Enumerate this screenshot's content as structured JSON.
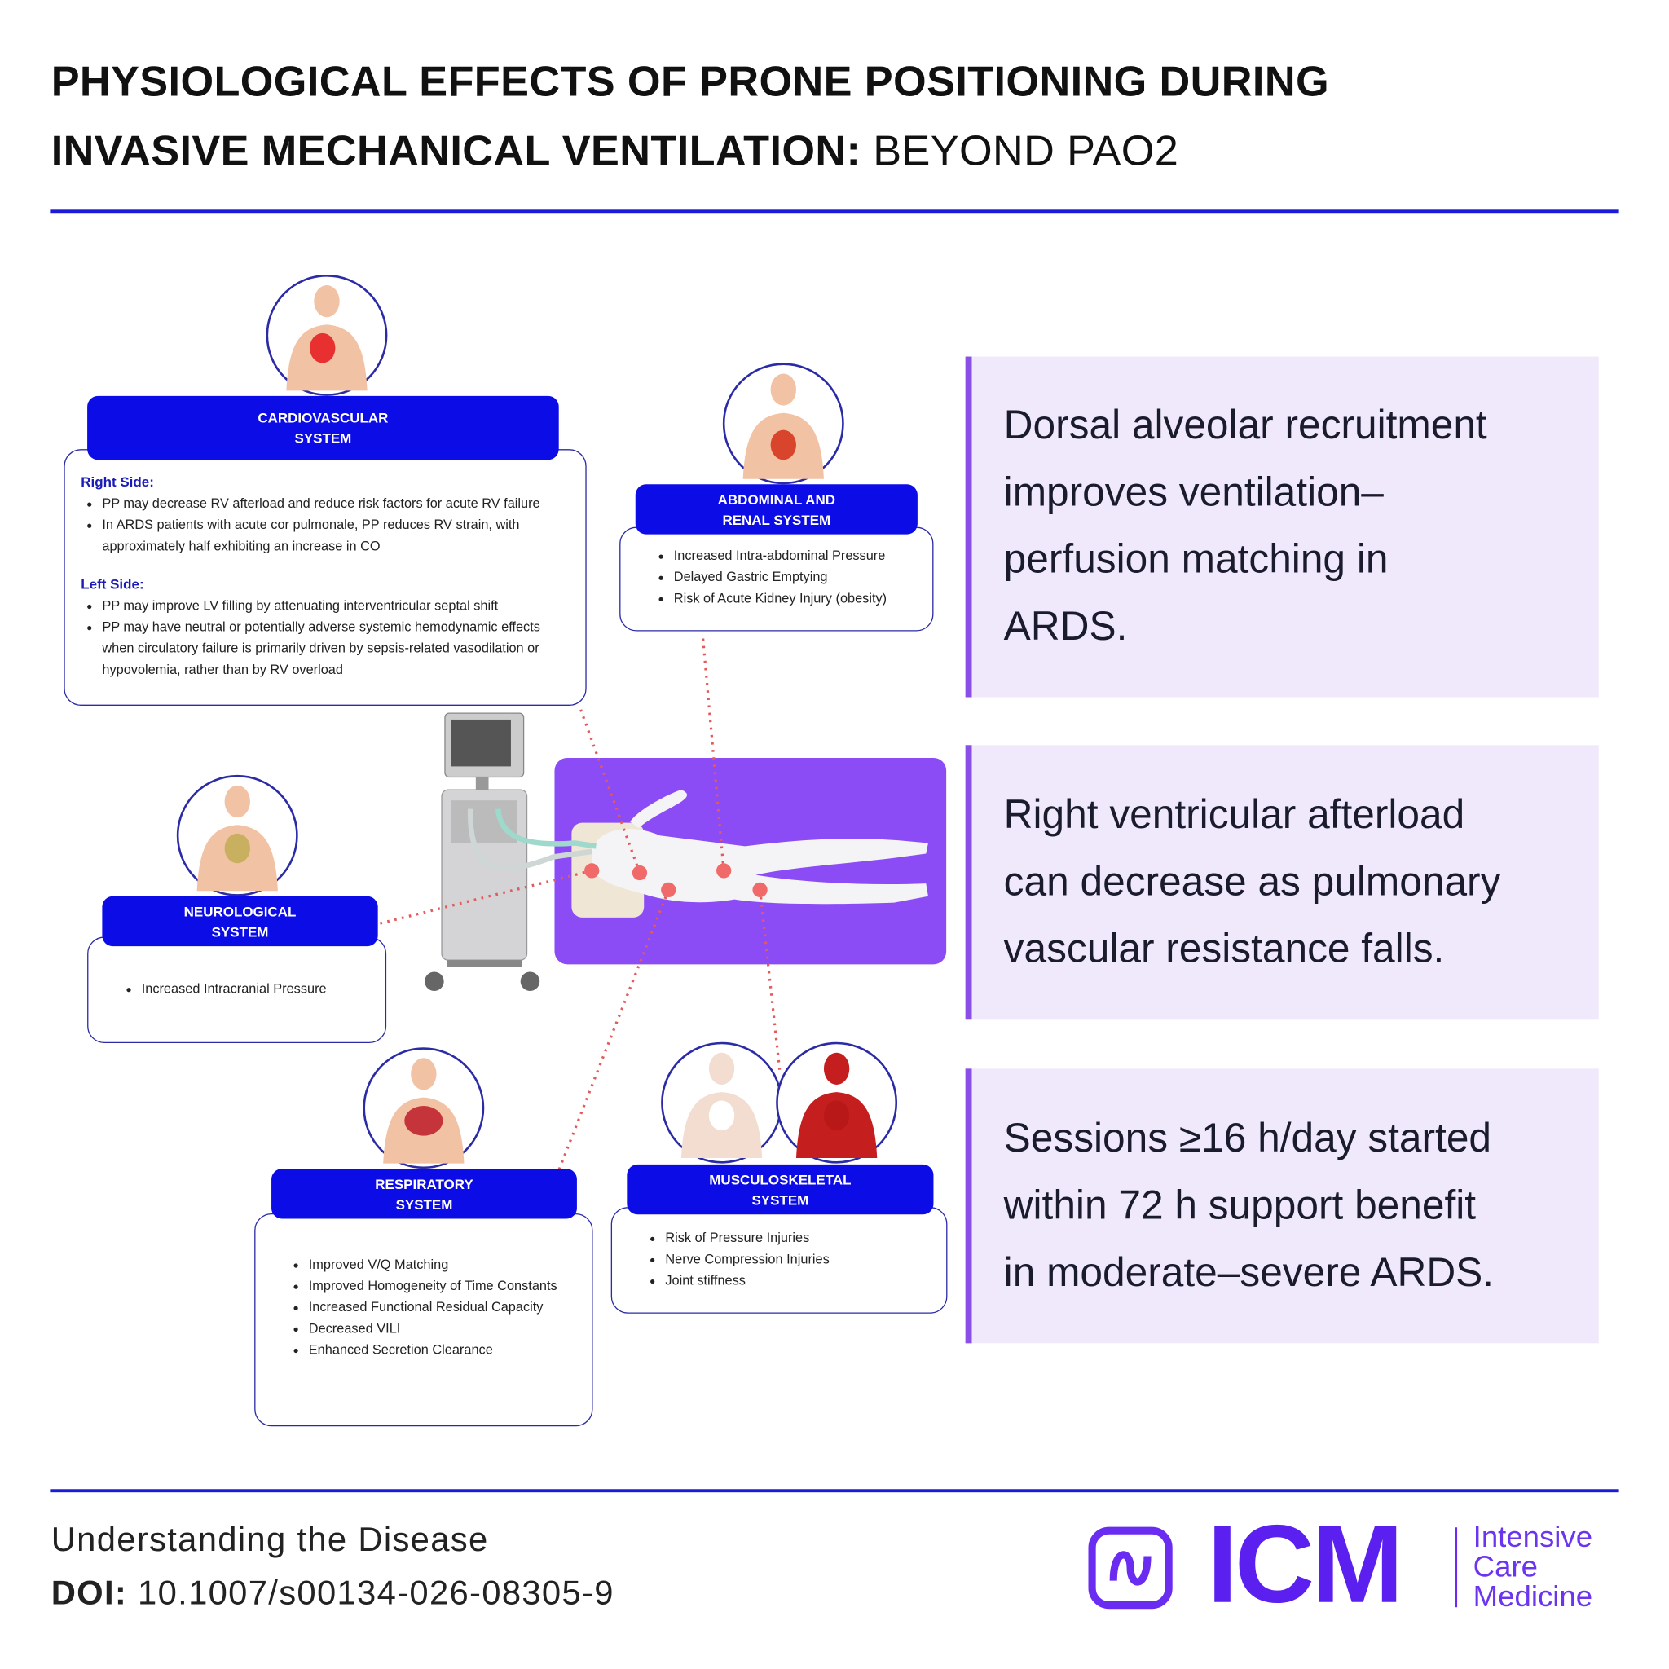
{
  "header": {
    "title_line1": "PHYSIOLOGICAL EFFECTS OF PRONE POSITIONING DURING",
    "title_line2_bold": "INVASIVE MECHANICAL VENTILATION:",
    "title_line2_rest": "BEYOND PAO2"
  },
  "systems": [
    {
      "title": [
        "CARDIOVASCULAR",
        "SYSTEM"
      ],
      "sections": [
        {
          "heading": "Right Side:",
          "bullets": [
            "PP may decrease RV afterload and reduce risk factors for acute RV failure",
            "In ARDS patients with acute cor pulmonale, PP reduces RV strain, with approximately half exhibiting an increase in CO"
          ]
        },
        {
          "heading": "Left Side:",
          "bullets": [
            "PP may improve LV filling by attenuating interventricular septal shift",
            "PP may have neutral or potentially adverse systemic hemodynamic effects when circulatory failure is primarily driven by sepsis-related vasodilation or hypovolemia, rather than by RV overload"
          ]
        }
      ]
    },
    {
      "title": [
        "ABDOMINAL AND",
        "RENAL SYSTEM"
      ],
      "sections": [
        {
          "bullets": [
            "Increased Intra-abdominal Pressure",
            "Delayed Gastric Emptying",
            "Risk of Acute Kidney Injury (obesity)"
          ]
        }
      ]
    },
    {
      "title": [
        "NEUROLOGICAL",
        "SYSTEM"
      ],
      "sections": [
        {
          "bullets": [
            "Increased Intracranial Pressure"
          ]
        }
      ]
    },
    {
      "title": [
        "RESPIRATORY",
        "SYSTEM"
      ],
      "sections": [
        {
          "bullets": [
            "Improved V/Q Matching",
            "Improved Homogeneity of Time Constants",
            "Increased Functional Residual Capacity",
            "Decreased VILI",
            "Enhanced Secretion Clearance"
          ]
        }
      ]
    },
    {
      "title": [
        "MUSCULOSKELETAL",
        "SYSTEM"
      ],
      "sections": [
        {
          "bullets": [
            "Risk of Pressure Injuries",
            "Nerve Compression Injuries",
            "Joint stiffness"
          ]
        }
      ]
    }
  ],
  "key_points": [
    [
      "Dorsal alveolar recruitment",
      "improves ventilation–",
      "perfusion matching in",
      "ARDS."
    ],
    [
      "Right ventricular afterload",
      "can decrease as pulmonary",
      "vascular resistance falls."
    ],
    [
      "Sessions ≥16 h/day started",
      "within 72 h support benefit",
      "in moderate–severe ARDS."
    ]
  ],
  "footer": {
    "category": "Understanding the Disease",
    "doi_label": "DOI:",
    "doi": "10.1007/s00134-026-08305-9",
    "logo_text": "ICM",
    "journal": [
      "Intensive",
      "Care",
      "Medicine"
    ]
  }
}
